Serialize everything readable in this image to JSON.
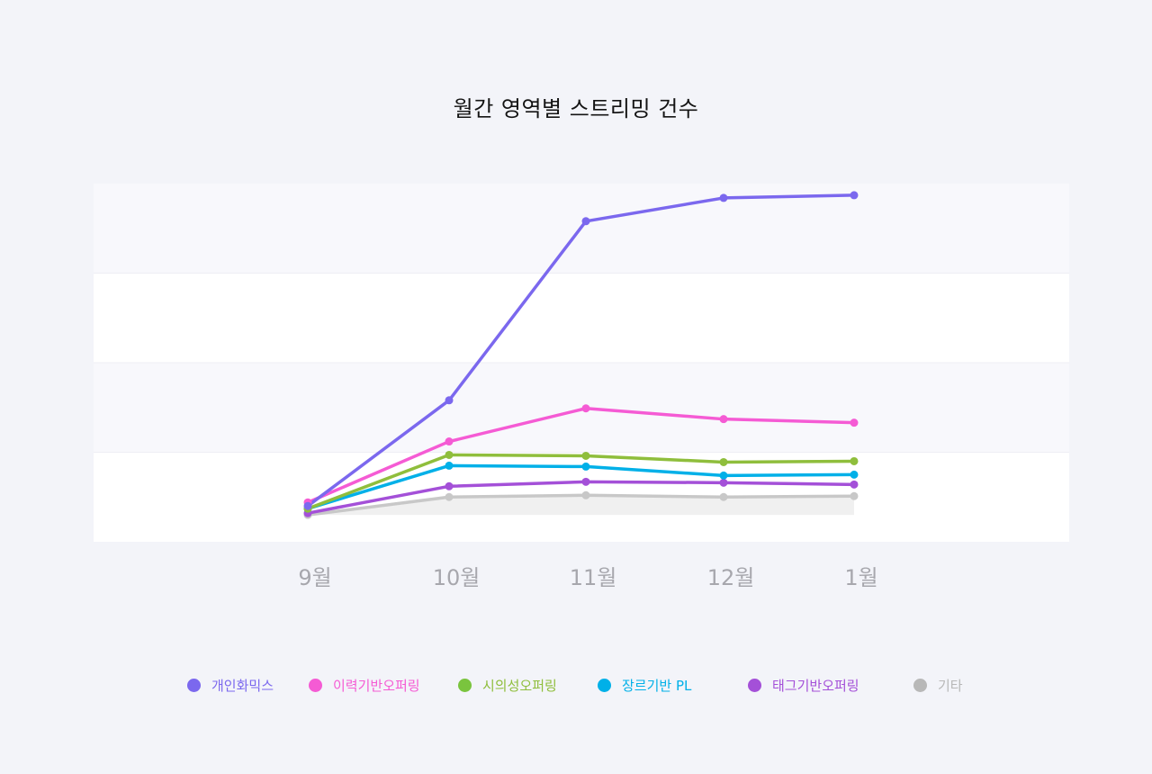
{
  "chart_data": {
    "type": "line",
    "title": "월간 영역별 스트리밍 건수",
    "xlabel": "",
    "ylabel": "",
    "categories": [
      "9월",
      "10월",
      "11월",
      "12월",
      "1월"
    ],
    "ylim": [
      0,
      400
    ],
    "grid": true,
    "legend_position": "bottom",
    "series": [
      {
        "name": "개인화믹스",
        "color": "#7b68ee",
        "values": [
          40,
          158,
          358,
          384,
          387
        ]
      },
      {
        "name": "이력기반오퍼링",
        "color": "#f55bd4",
        "values": [
          44,
          112,
          149,
          137,
          133
        ]
      },
      {
        "name": "시의성오퍼링",
        "color": "#8fbe3c",
        "values": [
          37,
          97,
          96,
          89,
          90
        ]
      },
      {
        "name": "장르기반 PL",
        "color": "#00b0e8",
        "values": [
          37,
          85,
          84,
          74,
          75
        ]
      },
      {
        "name": "태그기반오퍼링",
        "color": "#a450d8",
        "values": [
          32,
          62,
          67,
          66,
          64
        ]
      },
      {
        "name": "기타",
        "color": "#c8c8c8",
        "values": [
          30,
          50,
          52,
          50,
          51
        ]
      }
    ],
    "legend_text_colors": [
      "#7b68ee",
      "#f55bd4",
      "#8fbe3c",
      "#00b0e8",
      "#a450d8",
      "#b8b8b8"
    ],
    "legend_dot_colors": [
      "#7b68ee",
      "#f55bd4",
      "#7ac43e",
      "#00b0e8",
      "#a450d8",
      "#b8b8b8"
    ]
  }
}
